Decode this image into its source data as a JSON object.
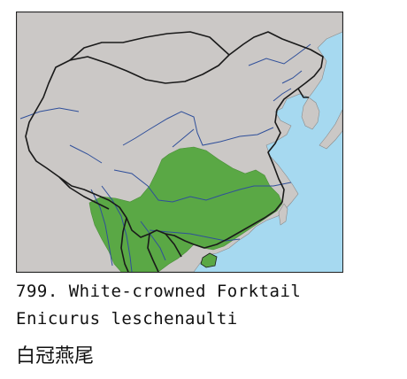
{
  "species": {
    "number_title": "799. White-crowned Forktail",
    "scientific_name": "Enicurus leschenaulti",
    "chinese_name": "白冠燕尾"
  },
  "map": {
    "colors": {
      "sea": "#a6d9f0",
      "land": "#cbc8c6",
      "range": "#5aa845",
      "rivers": "#2f4f9a",
      "borders": "#1a1a1a"
    }
  }
}
